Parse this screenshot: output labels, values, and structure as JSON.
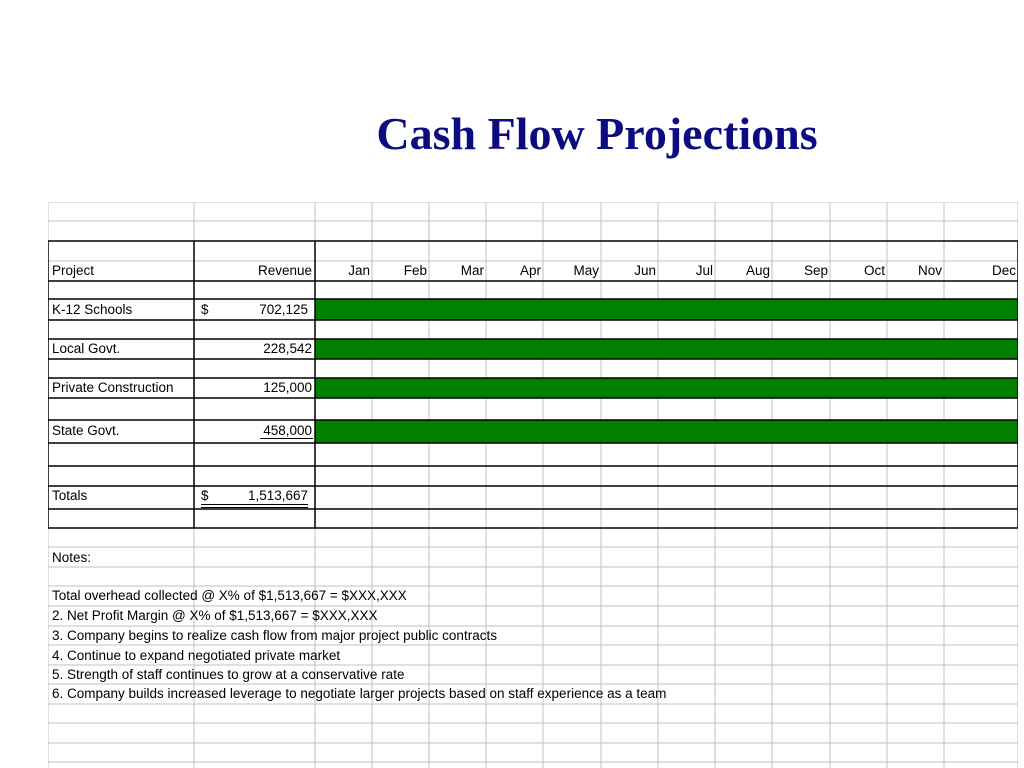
{
  "title": "Cash Flow Projections",
  "header": {
    "project": "Project",
    "revenue": "Revenue",
    "months": [
      "Jan",
      "Feb",
      "Mar",
      "Apr",
      "May",
      "Jun",
      "Jul",
      "Aug",
      "Sep",
      "Oct",
      "Nov",
      "Dec"
    ]
  },
  "projects": [
    {
      "name": "K-12 Schools",
      "currency": "$",
      "revenue": "702,125"
    },
    {
      "name": "Local Govt.",
      "currency": "",
      "revenue": "228,542"
    },
    {
      "name": "Private Construction",
      "currency": "",
      "revenue": "125,000"
    },
    {
      "name": "State Govt.",
      "currency": "",
      "revenue": "458,000"
    }
  ],
  "totals": {
    "label": "Totals",
    "currency": "$",
    "value": "1,513,667"
  },
  "notes": {
    "label": "Notes:",
    "items": [
      "Total overhead collected @ X% of $1,513,667 = $XXX,XXX",
      "2. Net Profit Margin @ X% of $1,513,667 = $XXX,XXX",
      "3. Company begins to realize cash flow from major project public contracts",
      "4. Continue to expand negotiated private market",
      "5. Strength of staff continues to grow at a conservative rate",
      "6. Company builds increased leverage to negotiate larger projects based on staff experience as a team"
    ]
  },
  "colors": {
    "bar": "#008000",
    "title": "#0c0c80",
    "grid": "#c0c0c0",
    "border": "#000000"
  }
}
